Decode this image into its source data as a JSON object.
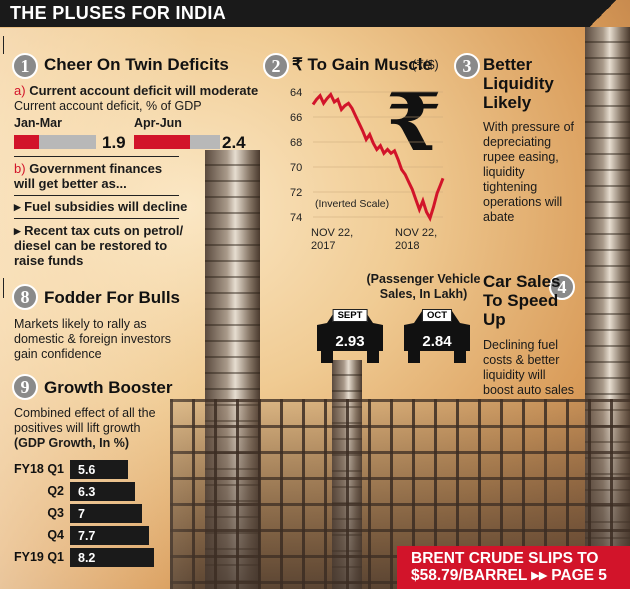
{
  "title": "THE PLUSES FOR INDIA",
  "section1": {
    "number": "1",
    "heading": "Cheer On Twin Deficits",
    "a_prefix": "a)",
    "a_text": "Current account deficit will moderate",
    "subtitle": "Current account deficit, % of GDP",
    "periods": [
      {
        "label": "Jan-Mar",
        "value": 1.9
      },
      {
        "label": "Apr-Jun",
        "value": 2.4
      }
    ],
    "b_prefix": "b)",
    "b_line1": "Government finances",
    "b_line2": "will get better as...",
    "bullet1": "Fuel subsidies will decline",
    "bullet2_line1": "Recent tax cuts on petrol/",
    "bullet2_line2": "diesel can be restored to",
    "bullet2_line3": "raise funds"
  },
  "section2": {
    "number": "2",
    "heading": "₹ To Gain Muscle",
    "unit": "(₹/$)",
    "note": "(Inverted Scale)",
    "rupee_icon": "rupee-icon"
  },
  "chart_data": {
    "type": "line",
    "title": "₹ To Gain Muscle",
    "ylabel": "(₹/$)",
    "ylim": [
      64,
      74
    ],
    "inverted": true,
    "yticks": [
      "64",
      "66",
      "68",
      "70",
      "72",
      "74"
    ],
    "xticks": [
      [
        "NOV 22,",
        "2017"
      ],
      [
        "NOV 22,",
        "2018"
      ]
    ],
    "series": [
      {
        "values": [
          [
            0,
            65.0
          ],
          [
            3,
            64.6
          ],
          [
            6,
            64.3
          ],
          [
            9,
            64.9
          ],
          [
            12,
            64.5
          ],
          [
            15,
            64.2
          ],
          [
            18,
            64.8
          ],
          [
            21,
            64.6
          ],
          [
            24,
            65.4
          ],
          [
            27,
            65.1
          ],
          [
            30,
            64.9
          ],
          [
            33,
            65.3
          ],
          [
            36,
            65.9
          ],
          [
            39,
            66.5
          ],
          [
            42,
            67.1
          ],
          [
            45,
            67.8
          ],
          [
            48,
            67.4
          ],
          [
            51,
            68.1
          ],
          [
            54,
            68.6
          ],
          [
            57,
            68.3
          ],
          [
            60,
            68.9
          ],
          [
            63,
            68.6
          ],
          [
            66,
            68.9
          ],
          [
            69,
            68.7
          ],
          [
            72,
            69.4
          ],
          [
            75,
            70.2
          ],
          [
            78,
            70.6
          ],
          [
            81,
            71.2
          ],
          [
            84,
            71.8
          ],
          [
            87,
            72.6
          ],
          [
            90,
            73.4
          ],
          [
            93,
            72.7
          ],
          [
            96,
            73.6
          ],
          [
            99,
            74.1
          ],
          [
            102,
            73.2
          ],
          [
            105,
            72.1
          ],
          [
            108,
            71.4
          ],
          [
            110,
            70.9
          ]
        ]
      }
    ]
  },
  "section3": {
    "number": "3",
    "heading_line1": "Better",
    "heading_line2": "Liquidity",
    "heading_line3": "Likely",
    "lines": [
      "With pressure of",
      "depreciating",
      "rupee easing,",
      "liquidity",
      "tightening",
      "operations will",
      "abate"
    ]
  },
  "section4": {
    "number": "4",
    "heading_line1": "Car Sales",
    "heading_line2": "To Speed",
    "heading_line3": "Up",
    "cars_note_line1": "(Passenger Vehicle",
    "cars_note_line2": "Sales, In Lakh)",
    "cars": [
      {
        "month": "SEPT",
        "value": "2.93"
      },
      {
        "month": "OCT",
        "value": "2.84"
      }
    ],
    "lines": [
      "Declining fuel",
      "costs & better",
      "liquidity will",
      "boost auto sales"
    ]
  },
  "section8": {
    "number": "8",
    "heading": "Fodder For Bulls",
    "lines": [
      "Markets likely to rally as",
      "domestic & foreign investors",
      "gain confidence"
    ]
  },
  "section9": {
    "number": "9",
    "heading": "Growth Booster",
    "lines": [
      "Combined effect of all the",
      "positives will lift growth",
      "(GDP Growth, In %)"
    ],
    "growth": [
      {
        "label": "FY18 Q1",
        "value": 5.6
      },
      {
        "label": "Q2",
        "value": 6.3
      },
      {
        "label": "Q3",
        "value": 7
      },
      {
        "label": "Q4",
        "value": 7.7
      },
      {
        "label": "FY19 Q1",
        "value": 8.2
      }
    ]
  },
  "footer": {
    "line1": "BRENT CRUDE SLIPS TO",
    "line2_a": "$58.79/BARREL",
    "arrow": "▸▸",
    "line2_b": "PAGE 5"
  }
}
